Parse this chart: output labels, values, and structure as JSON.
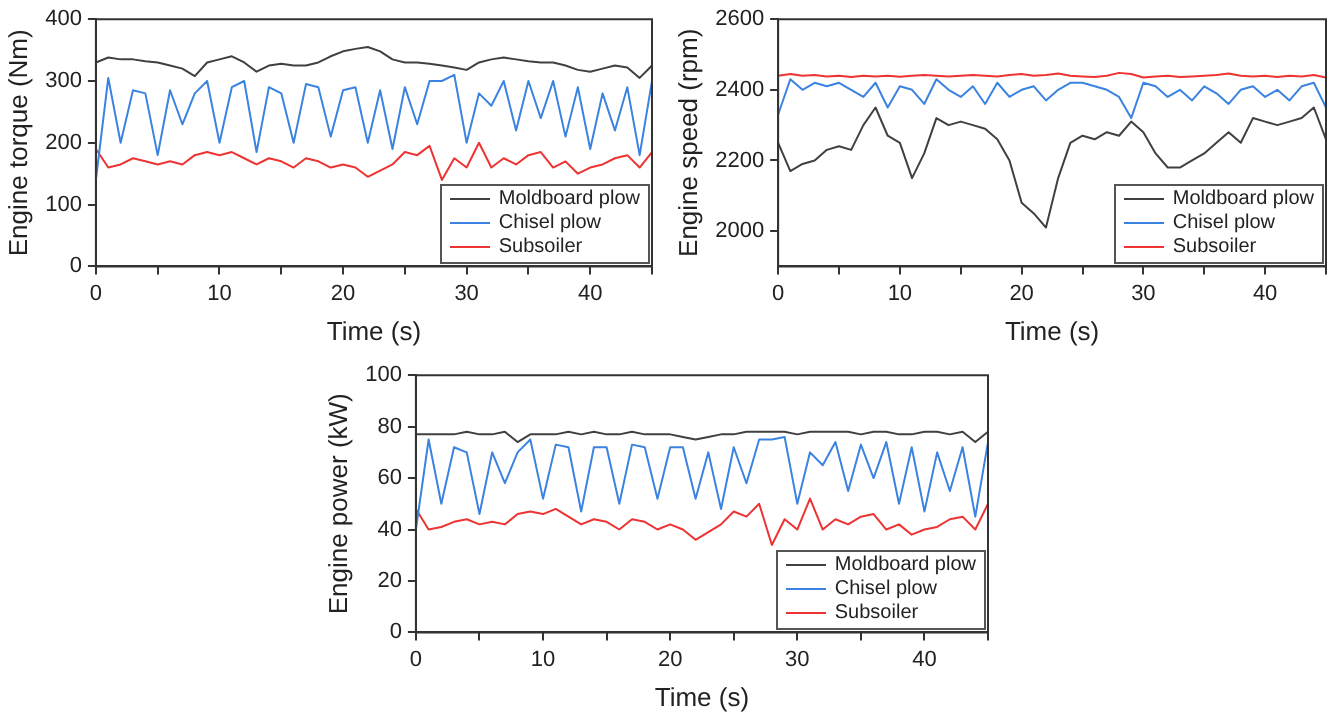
{
  "chart_data": [
    {
      "type": "line",
      "xlabel": "Time (s)",
      "ylabel": "Engine torque (Nm)",
      "xlim": [
        0,
        45
      ],
      "ylim": [
        0,
        400
      ],
      "xticks": [
        0,
        {
          "value": 5,
          "label": null
        },
        10,
        {
          "value": 15,
          "label": null
        },
        20,
        {
          "value": 25,
          "label": null
        },
        30,
        {
          "value": 35,
          "label": null
        },
        40,
        {
          "value": 45,
          "label": null
        }
      ],
      "yticks": [
        0,
        100,
        200,
        300,
        400
      ],
      "grid": false,
      "legend": "bottom right",
      "marker": "none",
      "line_style": "solid",
      "x": [
        0,
        1,
        2,
        3,
        4,
        5,
        6,
        7,
        8,
        9,
        10,
        11,
        12,
        13,
        14,
        15,
        16,
        17,
        18,
        19,
        20,
        21,
        22,
        23,
        24,
        25,
        26,
        27,
        28,
        29,
        30,
        31,
        32,
        33,
        34,
        35,
        36,
        37,
        38,
        39,
        40,
        41,
        42,
        43,
        44,
        45
      ],
      "series": [
        {
          "name": "Moldboard plow",
          "color": "#404040",
          "values": [
            330,
            338,
            335,
            335,
            332,
            330,
            325,
            320,
            308,
            330,
            335,
            340,
            330,
            315,
            325,
            328,
            325,
            325,
            330,
            340,
            348,
            352,
            355,
            348,
            335,
            330,
            330,
            328,
            325,
            322,
            318,
            330,
            335,
            338,
            335,
            332,
            330,
            330,
            325,
            318,
            315,
            320,
            325,
            322,
            305,
            325
          ]
        },
        {
          "name": "Chisel plow",
          "color": "#3b83e0",
          "values": [
            140,
            305,
            200,
            285,
            280,
            180,
            285,
            230,
            280,
            300,
            200,
            290,
            300,
            185,
            290,
            280,
            200,
            295,
            290,
            210,
            285,
            290,
            200,
            285,
            190,
            290,
            230,
            300,
            300,
            310,
            200,
            280,
            260,
            300,
            220,
            300,
            240,
            300,
            210,
            290,
            190,
            280,
            220,
            290,
            180,
            300
          ]
        },
        {
          "name": "Subsoiler",
          "color": "#ee3333",
          "values": [
            190,
            160,
            165,
            175,
            170,
            165,
            170,
            165,
            180,
            185,
            180,
            185,
            175,
            165,
            175,
            170,
            160,
            175,
            170,
            160,
            165,
            160,
            145,
            155,
            165,
            185,
            180,
            195,
            140,
            175,
            160,
            200,
            160,
            175,
            165,
            180,
            185,
            160,
            170,
            150,
            160,
            165,
            175,
            180,
            160,
            185
          ]
        }
      ]
    },
    {
      "type": "line",
      "xlabel": "Time (s)",
      "ylabel": "Engine speed (rpm)",
      "xlim": [
        0,
        45
      ],
      "ylim": [
        1900,
        2600
      ],
      "xticks": [
        0,
        {
          "value": 5,
          "label": null
        },
        10,
        {
          "value": 15,
          "label": null
        },
        20,
        {
          "value": 25,
          "label": null
        },
        30,
        {
          "value": 35,
          "label": null
        },
        40,
        {
          "value": 45,
          "label": null
        }
      ],
      "yticks": [
        2000,
        2200,
        2400,
        2600
      ],
      "grid": false,
      "legend": "bottom right",
      "marker": "none",
      "line_style": "solid",
      "x": [
        0,
        1,
        2,
        3,
        4,
        5,
        6,
        7,
        8,
        9,
        10,
        11,
        12,
        13,
        14,
        15,
        16,
        17,
        18,
        19,
        20,
        21,
        22,
        23,
        24,
        25,
        26,
        27,
        28,
        29,
        30,
        31,
        32,
        33,
        34,
        35,
        36,
        37,
        38,
        39,
        40,
        41,
        42,
        43,
        44,
        45
      ],
      "series": [
        {
          "name": "Moldboard plow",
          "color": "#404040",
          "values": [
            2250,
            2170,
            2190,
            2200,
            2230,
            2240,
            2230,
            2300,
            2350,
            2270,
            2250,
            2150,
            2220,
            2320,
            2300,
            2310,
            2300,
            2290,
            2260,
            2200,
            2080,
            2050,
            2010,
            2150,
            2250,
            2270,
            2260,
            2280,
            2270,
            2310,
            2280,
            2220,
            2180,
            2180,
            2200,
            2220,
            2250,
            2280,
            2250,
            2320,
            2310,
            2300,
            2310,
            2320,
            2350,
            2260
          ]
        },
        {
          "name": "Chisel plow",
          "color": "#3b83e0",
          "values": [
            2330,
            2430,
            2400,
            2420,
            2410,
            2420,
            2400,
            2380,
            2420,
            2350,
            2410,
            2400,
            2360,
            2430,
            2400,
            2380,
            2410,
            2360,
            2420,
            2380,
            2400,
            2410,
            2370,
            2400,
            2420,
            2420,
            2410,
            2400,
            2380,
            2320,
            2420,
            2410,
            2380,
            2400,
            2370,
            2410,
            2390,
            2360,
            2400,
            2410,
            2380,
            2400,
            2370,
            2410,
            2420,
            2350
          ]
        },
        {
          "name": "Subsoiler",
          "color": "#ee3333",
          "values": [
            2440,
            2445,
            2440,
            2442,
            2438,
            2440,
            2436,
            2440,
            2438,
            2440,
            2437,
            2440,
            2442,
            2440,
            2438,
            2440,
            2442,
            2440,
            2438,
            2442,
            2445,
            2440,
            2442,
            2446,
            2440,
            2438,
            2436,
            2440,
            2448,
            2445,
            2435,
            2438,
            2440,
            2436,
            2438,
            2440,
            2442,
            2446,
            2440,
            2438,
            2440,
            2436,
            2440,
            2438,
            2442,
            2435
          ]
        }
      ]
    },
    {
      "type": "line",
      "xlabel": "Time (s)",
      "ylabel": "Engine power (kW)",
      "xlim": [
        0,
        45
      ],
      "ylim": [
        0,
        100
      ],
      "xticks": [
        0,
        {
          "value": 5,
          "label": null
        },
        10,
        {
          "value": 15,
          "label": null
        },
        20,
        {
          "value": 25,
          "label": null
        },
        30,
        {
          "value": 35,
          "label": null
        },
        40,
        {
          "value": 45,
          "label": null
        }
      ],
      "yticks": [
        0,
        20,
        40,
        60,
        80,
        100
      ],
      "grid": false,
      "legend": "bottom right",
      "marker": "none",
      "line_style": "solid",
      "x": [
        0,
        1,
        2,
        3,
        4,
        5,
        6,
        7,
        8,
        9,
        10,
        11,
        12,
        13,
        14,
        15,
        16,
        17,
        18,
        19,
        20,
        21,
        22,
        23,
        24,
        25,
        26,
        27,
        28,
        29,
        30,
        31,
        32,
        33,
        34,
        35,
        36,
        37,
        38,
        39,
        40,
        41,
        42,
        43,
        44,
        45
      ],
      "series": [
        {
          "name": "Moldboard plow",
          "color": "#404040",
          "values": [
            77,
            77,
            77,
            77,
            78,
            77,
            77,
            78,
            74,
            77,
            77,
            77,
            78,
            77,
            78,
            77,
            77,
            78,
            77,
            77,
            77,
            76,
            75,
            76,
            77,
            77,
            78,
            78,
            78,
            78,
            77,
            78,
            78,
            78,
            78,
            77,
            78,
            78,
            77,
            77,
            78,
            78,
            77,
            78,
            74,
            78
          ]
        },
        {
          "name": "Chisel plow",
          "color": "#3b83e0",
          "values": [
            40,
            75,
            50,
            72,
            70,
            46,
            70,
            58,
            70,
            75,
            52,
            73,
            72,
            47,
            72,
            72,
            50,
            73,
            72,
            52,
            72,
            72,
            52,
            70,
            48,
            72,
            58,
            75,
            75,
            76,
            50,
            70,
            65,
            74,
            55,
            73,
            60,
            74,
            50,
            72,
            47,
            70,
            55,
            72,
            45,
            74
          ]
        },
        {
          "name": "Subsoiler",
          "color": "#ee3333",
          "values": [
            48,
            40,
            41,
            43,
            44,
            42,
            43,
            42,
            46,
            47,
            46,
            48,
            45,
            42,
            44,
            43,
            40,
            44,
            43,
            40,
            42,
            40,
            36,
            39,
            42,
            47,
            45,
            50,
            34,
            44,
            40,
            52,
            40,
            44,
            42,
            45,
            46,
            40,
            42,
            38,
            40,
            41,
            44,
            45,
            40,
            50
          ]
        }
      ]
    }
  ]
}
